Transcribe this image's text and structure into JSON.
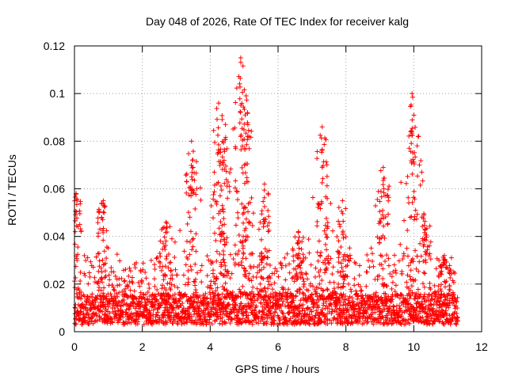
{
  "chart_data": {
    "type": "scatter",
    "title": "Day 048 of 2026, Rate Of TEC Index for receiver kalg",
    "xlabel": "GPS time / hours",
    "ylabel": "ROTI / TECUs",
    "xlim": [
      0,
      12
    ],
    "ylim": [
      0,
      0.12
    ],
    "x_ticks": [
      "0",
      "2",
      "4",
      "6",
      "8",
      "10",
      "12"
    ],
    "y_ticks": [
      "0",
      "0.02",
      "0.04",
      "0.06",
      "0.08",
      "0.1",
      "0.12"
    ],
    "grid": true,
    "marker": "+",
    "series": [
      {
        "name": "ROTI",
        "color": "#ff0000",
        "x_range": [
          0,
          11.3
        ],
        "baseline_band": [
          0.003,
          0.025
        ],
        "peaks": [
          {
            "x": 0.05,
            "y": 0.058
          },
          {
            "x": 0.85,
            "y": 0.055
          },
          {
            "x": 2.7,
            "y": 0.046
          },
          {
            "x": 3.45,
            "y": 0.08
          },
          {
            "x": 4.25,
            "y": 0.096
          },
          {
            "x": 4.45,
            "y": 0.087
          },
          {
            "x": 4.9,
            "y": 0.115
          },
          {
            "x": 5.1,
            "y": 0.092
          },
          {
            "x": 5.6,
            "y": 0.062
          },
          {
            "x": 6.6,
            "y": 0.042
          },
          {
            "x": 7.3,
            "y": 0.086
          },
          {
            "x": 7.9,
            "y": 0.055
          },
          {
            "x": 9.1,
            "y": 0.069
          },
          {
            "x": 9.95,
            "y": 0.1
          },
          {
            "x": 10.3,
            "y": 0.049
          },
          {
            "x": 10.9,
            "y": 0.032
          }
        ]
      }
    ]
  }
}
